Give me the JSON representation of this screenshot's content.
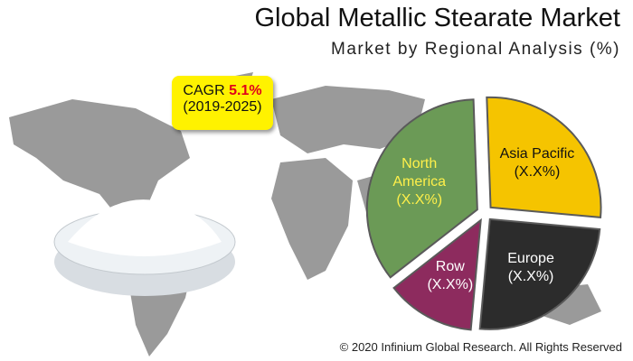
{
  "chart_data": {
    "type": "pie",
    "title": "Global Metallic Stearate Market",
    "subtitle": "Market by Regional Analysis (%)",
    "categories": [
      "Asia Pacific",
      "Europe",
      "Row",
      "North America"
    ],
    "values": [
      27,
      25,
      13,
      35
    ],
    "value_labels": [
      "(X.X%)",
      "(X.X%)",
      "(X.X%)",
      "(X.X%)"
    ],
    "colors": [
      "#f5c400",
      "#2c2c2c",
      "#8d2b5e",
      "#6b9a56"
    ],
    "label_colors": [
      "#111111",
      "#ffffff",
      "#ffffff",
      "#fff04a"
    ],
    "cagr": {
      "label": "CAGR",
      "value": "5.1%",
      "period": "(2019-2025)"
    },
    "footer": "© 2020 Infinium Global Research. All Rights Reserved"
  }
}
